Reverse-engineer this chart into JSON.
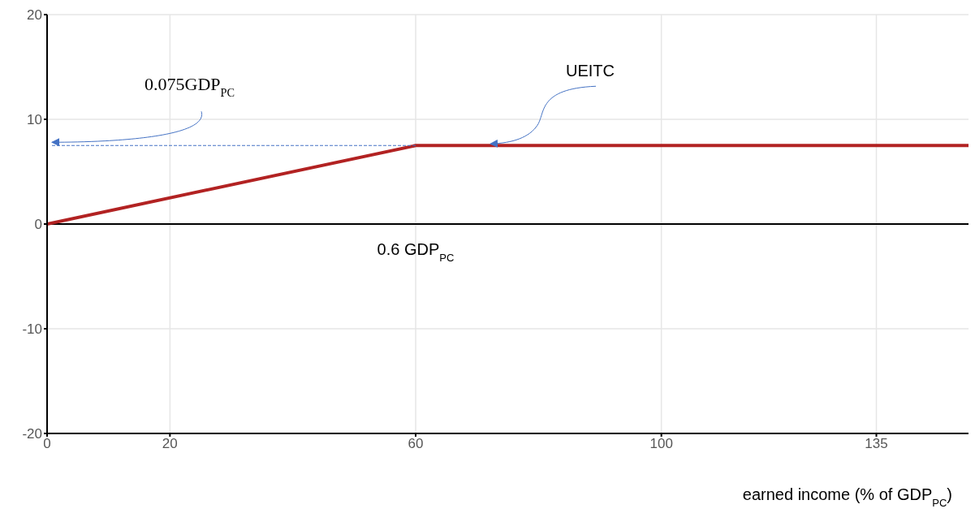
{
  "chart_data": {
    "type": "line",
    "xlabel": "earned income (% of GDP$_{PC}$)",
    "x": [
      0,
      60,
      150
    ],
    "series": [
      {
        "name": "UEITC",
        "color": "#b22222",
        "values": [
          0,
          7.5,
          7.5
        ]
      }
    ],
    "xlim": [
      0,
      150
    ],
    "xticks": [
      0,
      20,
      60,
      100,
      135
    ],
    "ylim": [
      -20,
      20
    ],
    "yticks": [
      -20,
      -10,
      0,
      10,
      20
    ],
    "grid": true,
    "marker": "none",
    "line_style": "solid",
    "ref_lines": [
      {
        "axis": "y",
        "value": 0,
        "color": "#000000"
      }
    ],
    "annotations": [
      "0.075GDP$_{PC}$",
      {
        "text": "0.6 GDP$_{PC}$",
        "x": 60,
        "y": 0
      }
    ]
  }
}
